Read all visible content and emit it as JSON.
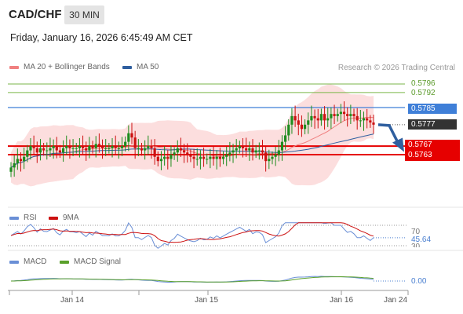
{
  "header": {
    "symbol": "CAD/CHF",
    "timeframe": "30 MIN",
    "datetime": "Friday, January 16, 2026 6:45:49 AM CET",
    "copyright": "Research © 2026 Trading Central"
  },
  "legend": {
    "bollinger": "MA 20 + Bollinger Bands",
    "ma50": "MA 50",
    "rsi": "RSI",
    "rsi_ma": "9MA",
    "macd": "MACD",
    "macd_signal": "MACD Signal"
  },
  "colors": {
    "bollinger": "#f08080",
    "ma50": "#2f5f9f",
    "bull": "#1e8c1e",
    "bear": "#cc1111",
    "support": "#e60000",
    "pivot": "#3f7fd8",
    "target": "#7ab648",
    "rsi": "#6a8fd6",
    "macd": "#6a8fd6",
    "macd_signal": "#5aa02a"
  },
  "price_levels": [
    {
      "label": "0.5796",
      "value": 0.5796,
      "style": "target"
    },
    {
      "label": "0.5792",
      "value": 0.5792,
      "style": "target"
    },
    {
      "label": "0.5785",
      "value": 0.5785,
      "style": "pivot"
    },
    {
      "label": "0.5777",
      "value": 0.5777,
      "style": "current"
    },
    {
      "label": "0.5767",
      "value": 0.5767,
      "style": "support"
    },
    {
      "label": "0.5763",
      "value": 0.5763,
      "style": "support"
    }
  ],
  "rsi_panel": {
    "level_high": "70",
    "current": "45.64",
    "level_low": "30"
  },
  "macd_panel": {
    "zero": "0.00"
  },
  "x_axis": [
    "Jan 14",
    "Jan 15",
    "Jan 16",
    "Jan 24"
  ],
  "chart_data": {
    "type": "candlestick",
    "title": "CAD/CHF",
    "interval": "30 MIN",
    "ylim": [
      0.5755,
      0.58
    ],
    "closes": [
      0.5757,
      0.5759,
      0.5761,
      0.576,
      0.5762,
      0.5765,
      0.5767,
      0.5766,
      0.5764,
      0.5766,
      0.5765,
      0.5765,
      0.5766,
      0.5767,
      0.5765,
      0.5764,
      0.5766,
      0.5767,
      0.5766,
      0.5766,
      0.5766,
      0.5767,
      0.5766,
      0.5765,
      0.5767,
      0.5766,
      0.5768,
      0.5767,
      0.5766,
      0.5766,
      0.5766,
      0.5767,
      0.5766,
      0.5766,
      0.5767,
      0.5769,
      0.5773,
      0.5771,
      0.5766,
      0.5766,
      0.5765,
      0.5766,
      0.5767,
      0.5766,
      0.5762,
      0.576,
      0.5761,
      0.5762,
      0.5761,
      0.5763,
      0.5764,
      0.5766,
      0.5765,
      0.5764,
      0.5763,
      0.5762,
      0.5761,
      0.5761,
      0.5762,
      0.5761,
      0.5761,
      0.5762,
      0.5761,
      0.5762,
      0.5761,
      0.5762,
      0.5763,
      0.5764,
      0.5765,
      0.5766,
      0.5767,
      0.5766,
      0.5765,
      0.5766,
      0.5764,
      0.5765,
      0.5765,
      0.5764,
      0.576,
      0.5761,
      0.5762,
      0.5763,
      0.5765,
      0.5769,
      0.5772,
      0.5777,
      0.5781,
      0.5779,
      0.5777,
      0.5775,
      0.5777,
      0.5779,
      0.5781,
      0.578,
      0.5779,
      0.5782,
      0.5779,
      0.578,
      0.5782,
      0.5781,
      0.5782,
      0.5783,
      0.5782,
      0.5781,
      0.5782,
      0.5781,
      0.5779,
      0.5779,
      0.578,
      0.5779,
      0.5778,
      0.5777
    ],
    "forecast": {
      "from": 0.5777,
      "to": 0.5765,
      "direction": "down"
    },
    "rsi_current": 45.64,
    "macd_zero": 0.0
  }
}
